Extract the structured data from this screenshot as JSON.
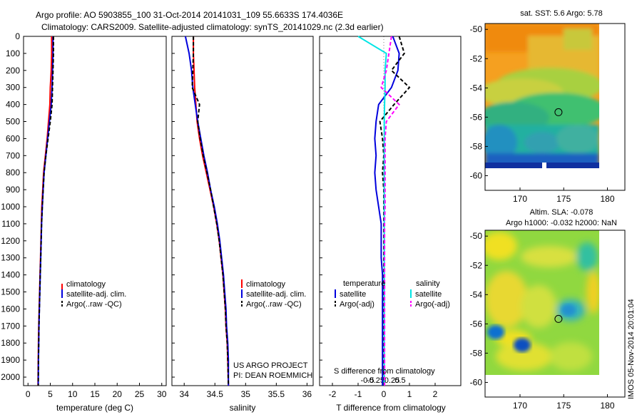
{
  "header": {
    "line1": "Argo profile: AO 5903855_100 31-Oct-2014 20141031_109 55.6633S 174.4036E",
    "line2": "Climatology: CARS2009. Satellite-adjusted climatology: synTS_20141029.nc (2.3d earlier)"
  },
  "depth_ticks": [
    "0",
    "100",
    "200",
    "300",
    "400",
    "500",
    "600",
    "700",
    "800",
    "900",
    "1000",
    "1100",
    "1200",
    "1300",
    "1400",
    "1500",
    "1600",
    "1700",
    "1800",
    "1900",
    "2000"
  ],
  "colors": {
    "climatology": "#ff0000",
    "satellite": "#0000dd",
    "argo": "#000000",
    "salinity_sat": "#00e5e5",
    "salinity_argo": "#ff00ff"
  },
  "chart_data": [
    {
      "type": "line",
      "id": "temperature",
      "xlabel": "temperature (deg C)",
      "xlim": [
        -1,
        31
      ],
      "ylim": [
        2050,
        0
      ],
      "xticks": [
        0,
        5,
        10,
        15,
        20,
        25,
        30
      ],
      "xtick_labels": [
        "0",
        "5",
        "10",
        "15",
        "20",
        "25",
        "30"
      ],
      "series": [
        {
          "name": "climatology",
          "color": "#ff0000",
          "dash": "",
          "x": [
            5.3,
            5.3,
            5.2,
            5.0,
            4.9,
            4.6,
            4.3,
            3.9,
            3.5,
            3.3,
            3.1,
            3.0,
            2.9,
            2.8,
            2.7,
            2.6,
            2.5,
            2.4,
            2.35,
            2.3,
            2.25
          ],
          "y": [
            0,
            100,
            200,
            300,
            400,
            500,
            600,
            700,
            800,
            900,
            1000,
            1100,
            1200,
            1300,
            1400,
            1500,
            1600,
            1700,
            1800,
            1900,
            2050
          ]
        },
        {
          "name": "satellite-adj. clim.",
          "color": "#0000dd",
          "dash": "",
          "x": [
            5.6,
            5.6,
            5.5,
            5.4,
            5.2,
            4.8,
            4.4,
            4.0,
            3.6,
            3.4,
            3.2,
            3.05,
            2.95,
            2.85,
            2.75,
            2.65,
            2.55,
            2.45,
            2.4,
            2.35,
            2.3
          ],
          "y": [
            0,
            100,
            200,
            300,
            400,
            500,
            600,
            700,
            800,
            900,
            1000,
            1100,
            1200,
            1300,
            1400,
            1500,
            1600,
            1700,
            1800,
            1900,
            2050
          ]
        },
        {
          "name": "Argo(..raw -QC)",
          "color": "#000000",
          "dash": "5,3",
          "x": [
            5.7,
            5.7,
            5.6,
            5.5,
            5.4,
            5.0,
            4.5,
            4.0,
            3.6,
            3.4,
            3.2,
            3.05,
            2.95,
            2.85,
            2.75,
            2.65,
            2.55,
            2.45,
            2.4,
            2.35,
            2.3
          ],
          "y": [
            0,
            100,
            200,
            300,
            400,
            500,
            600,
            700,
            800,
            900,
            1000,
            1100,
            1200,
            1300,
            1400,
            1500,
            1600,
            1700,
            1800,
            1900,
            2050
          ]
        }
      ],
      "legend": [
        "climatology",
        "satellite-adj. clim.",
        "Argo(..raw -QC)"
      ]
    },
    {
      "type": "line",
      "id": "salinity",
      "xlabel": "salinity",
      "xlim": [
        33.8,
        36.1
      ],
      "ylim": [
        2050,
        0
      ],
      "xticks": [
        34,
        34.5,
        35,
        35.5,
        36
      ],
      "xtick_labels": [
        "34",
        "34.5",
        "35",
        "35.5",
        "36"
      ],
      "series": [
        {
          "name": "climatology",
          "color": "#ff0000",
          "dash": "",
          "x": [
            34.15,
            34.15,
            34.16,
            34.17,
            34.19,
            34.21,
            34.25,
            34.3,
            34.36,
            34.42,
            34.48,
            34.53,
            34.57,
            34.6,
            34.63,
            34.65,
            34.67,
            34.68,
            34.7,
            34.71,
            34.72
          ],
          "y": [
            0,
            100,
            200,
            300,
            400,
            500,
            600,
            700,
            800,
            900,
            1000,
            1100,
            1200,
            1300,
            1400,
            1500,
            1600,
            1700,
            1800,
            1900,
            2050
          ]
        },
        {
          "name": "satellite-adj. clim.",
          "color": "#0000dd",
          "dash": "",
          "x": [
            34.02,
            34.08,
            34.12,
            34.14,
            34.18,
            34.22,
            34.27,
            34.32,
            34.38,
            34.43,
            34.49,
            34.54,
            34.58,
            34.61,
            34.64,
            34.66,
            34.68,
            34.69,
            34.71,
            34.72,
            34.72
          ],
          "y": [
            0,
            100,
            200,
            300,
            400,
            500,
            600,
            700,
            800,
            900,
            1000,
            1100,
            1200,
            1300,
            1400,
            1500,
            1600,
            1700,
            1800,
            1900,
            2050
          ]
        },
        {
          "name": "Argo(..raw -QC)",
          "color": "#000000",
          "dash": "5,3",
          "x": [
            34.15,
            34.15,
            34.14,
            34.13,
            34.25,
            34.22,
            34.26,
            34.31,
            34.37,
            34.43,
            34.48,
            34.53,
            34.57,
            34.6,
            34.63,
            34.65,
            34.67,
            34.68,
            34.7,
            34.71,
            34.72
          ],
          "y": [
            0,
            100,
            200,
            300,
            400,
            500,
            600,
            700,
            800,
            900,
            1000,
            1100,
            1200,
            1300,
            1400,
            1500,
            1600,
            1700,
            1800,
            1900,
            2050
          ]
        }
      ],
      "legend": [
        "climatology",
        "satellite-adj. clim.",
        "Argo(..raw -QC)"
      ],
      "annotation": [
        "US ARGO PROJECT",
        "PI: DEAN ROEMMICH"
      ]
    },
    {
      "type": "line",
      "id": "difference",
      "xlabel": "T difference from climatology",
      "top_label": "S difference from climatology",
      "xlim": [
        -2.5,
        3
      ],
      "ylim": [
        2050,
        0
      ],
      "xticks": [
        -2,
        -1,
        0,
        1,
        2
      ],
      "xtick_labels": [
        "-2",
        "-1",
        "0",
        "1",
        "2"
      ],
      "s_ticks": [
        -0.5,
        -0.25,
        0,
        0.25,
        0.5
      ],
      "s_tick_labels": [
        "-0.5",
        "-0.25",
        "0",
        "0.25",
        "0.5"
      ],
      "series": [
        {
          "name": "satellite",
          "group": "temperature",
          "color": "#0000dd",
          "dash": "",
          "x": [
            0.35,
            0.6,
            0.55,
            0.3,
            -0.2,
            -0.3,
            -0.35,
            -0.3,
            -0.35,
            -0.3,
            -0.2,
            -0.1,
            -0.1,
            -0.1,
            -0.05,
            -0.05,
            -0.05,
            -0.05,
            -0.05,
            -0.05,
            -0.05
          ],
          "y": [
            0,
            100,
            200,
            300,
            400,
            500,
            600,
            700,
            800,
            900,
            1000,
            1100,
            1200,
            1300,
            1400,
            1500,
            1600,
            1700,
            1800,
            1900,
            2050
          ]
        },
        {
          "name": "Argo(-adj)",
          "group": "temperature",
          "color": "#000000",
          "dash": "5,3",
          "x": [
            0.6,
            0.8,
            0.3,
            1.0,
            0.4,
            -0.15,
            -0.05,
            0.0,
            -0.05,
            0.0,
            0.0,
            0.0,
            0.0,
            0.0,
            0.0,
            0.0,
            0.0,
            0.0,
            0.0,
            0.0,
            0.0
          ],
          "y": [
            0,
            100,
            200,
            300,
            400,
            500,
            600,
            700,
            800,
            900,
            1000,
            1100,
            1200,
            1300,
            1400,
            1500,
            1600,
            1700,
            1800,
            1900,
            2050
          ]
        },
        {
          "name": "satellite",
          "group": "salinity",
          "color": "#00e5e5",
          "dash": "",
          "x": [
            -1.0,
            0.1,
            0.05,
            0.05,
            0.03,
            0.02,
            0.02,
            0.02,
            0.02,
            0.02,
            0.02,
            0.02,
            0.02,
            0.02,
            0.02,
            0.02,
            0.02,
            0.02,
            0.02,
            0.02,
            0.02
          ],
          "y": [
            0,
            100,
            200,
            300,
            400,
            500,
            600,
            700,
            800,
            900,
            1000,
            1100,
            1200,
            1300,
            1400,
            1500,
            1600,
            1700,
            1800,
            1900,
            2050
          ]
        },
        {
          "name": "Argo(-adj)",
          "group": "salinity",
          "color": "#ff00ff",
          "dash": "5,3",
          "x": [
            0.3,
            0.2,
            0.1,
            -0.1,
            0.6,
            0.1,
            0.05,
            0.05,
            0.05,
            0.05,
            0.05,
            0.03,
            0.03,
            0.03,
            0.03,
            0.03,
            0.03,
            0.03,
            0.03,
            0.03,
            0.03
          ],
          "y": [
            0,
            100,
            200,
            300,
            400,
            500,
            600,
            700,
            800,
            900,
            1000,
            1100,
            1200,
            1300,
            1400,
            1500,
            1600,
            1700,
            1800,
            1900,
            2050
          ]
        }
      ],
      "legend_titles": [
        "temperature",
        "salinity"
      ]
    },
    {
      "type": "heatmap",
      "id": "sst_map",
      "title": "sat. SST: 5.6 Argo: 5.78",
      "xlim": [
        166,
        182
      ],
      "ylim": [
        -61,
        -49.6
      ],
      "xticks": [
        170,
        175,
        180
      ],
      "xtick_labels": [
        "170",
        "175",
        "180"
      ],
      "yticks": [
        -50,
        -52,
        -54,
        -56,
        -58,
        -60
      ],
      "ytick_labels": [
        "-50",
        "-52",
        "-54",
        "-56",
        "-58",
        "-60"
      ],
      "marker": {
        "lon": 174.4,
        "lat": -55.66
      }
    },
    {
      "type": "heatmap",
      "id": "sla_map",
      "title": [
        "Altim. SLA: -0.078",
        "Argo h1000: -0.032 h2000: NaN"
      ],
      "xlim": [
        166,
        182
      ],
      "ylim": [
        -61,
        -49.6
      ],
      "xticks": [
        170,
        175,
        180
      ],
      "xtick_labels": [
        "170",
        "175",
        "180"
      ],
      "yticks": [
        -50,
        -52,
        -54,
        -56,
        -58,
        -60
      ],
      "ytick_labels": [
        "-50",
        "-52",
        "-54",
        "-56",
        "-58",
        "-60"
      ],
      "marker": {
        "lon": 174.4,
        "lat": -55.66
      }
    }
  ],
  "footer": {
    "stamp": "IMOS 05-Nov-2014 20:01:04"
  }
}
